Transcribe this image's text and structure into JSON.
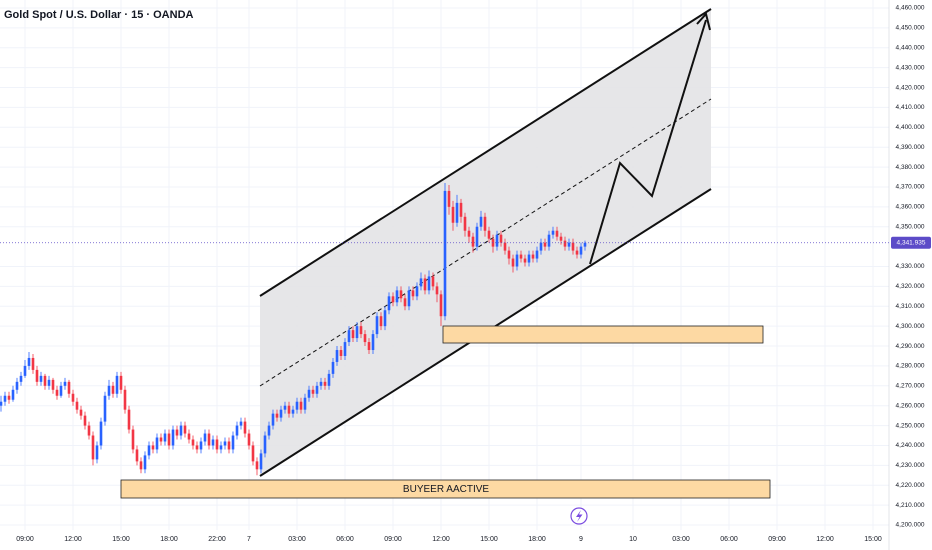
{
  "chart_data": {
    "type": "candlestick",
    "title": "Gold Spot / U.S. Dollar · 15 · OANDA",
    "up_color": "#2962ff",
    "down_color": "#f23645",
    "grid": true,
    "last_price": 4341.935,
    "last_price_label": "4,341.935",
    "last_price_color": "#5c4bc8",
    "annotation": "BUYEER AACTIVE",
    "xlim": [
      0,
      222
    ],
    "ylim": [
      4200,
      4460
    ],
    "xticks": [
      {
        "value": 6,
        "label": "09:00"
      },
      {
        "value": 18,
        "label": "12:00"
      },
      {
        "value": 30,
        "label": "15:00"
      },
      {
        "value": 42,
        "label": "18:00"
      },
      {
        "value": 54,
        "label": "22:00"
      },
      {
        "value": 62,
        "label": "7"
      },
      {
        "value": 74,
        "label": "03:00"
      },
      {
        "value": 86,
        "label": "06:00"
      },
      {
        "value": 98,
        "label": "09:00"
      },
      {
        "value": 110,
        "label": "12:00"
      },
      {
        "value": 122,
        "label": "15:00"
      },
      {
        "value": 134,
        "label": "18:00"
      },
      {
        "value": 145,
        "label": "9"
      },
      {
        "value": 158,
        "label": "10"
      },
      {
        "value": 170,
        "label": "03:00"
      },
      {
        "value": 182,
        "label": "06:00"
      },
      {
        "value": 194,
        "label": "09:00"
      },
      {
        "value": 206,
        "label": "12:00"
      },
      {
        "value": 218,
        "label": "15:00"
      }
    ],
    "yticks": [
      {
        "value": 4200,
        "label": "4,200.000"
      },
      {
        "value": 4210,
        "label": "4,210.000"
      },
      {
        "value": 4220,
        "label": "4,220.000"
      },
      {
        "value": 4230,
        "label": "4,230.000"
      },
      {
        "value": 4240,
        "label": "4,240.000"
      },
      {
        "value": 4250,
        "label": "4,250.000"
      },
      {
        "value": 4260,
        "label": "4,260.000"
      },
      {
        "value": 4270,
        "label": "4,270.000"
      },
      {
        "value": 4280,
        "label": "4,280.000"
      },
      {
        "value": 4290,
        "label": "4,290.000"
      },
      {
        "value": 4300,
        "label": "4,300.000"
      },
      {
        "value": 4310,
        "label": "4,310.000"
      },
      {
        "value": 4320,
        "label": "4,320.000"
      },
      {
        "value": 4330,
        "label": "4,330.000"
      },
      {
        "value": 4350,
        "label": "4,350.000"
      },
      {
        "value": 4360,
        "label": "4,360.000"
      },
      {
        "value": 4370,
        "label": "4,370.000"
      },
      {
        "value": 4380,
        "label": "4,380.000"
      },
      {
        "value": 4390,
        "label": "4,390.000"
      },
      {
        "value": 4400,
        "label": "4,400.000"
      },
      {
        "value": 4410,
        "label": "4,410.000"
      },
      {
        "value": 4420,
        "label": "4,420.000"
      },
      {
        "value": 4430,
        "label": "4,430.000"
      },
      {
        "value": 4440,
        "label": "4,440.000"
      },
      {
        "value": 4450,
        "label": "4,450.000"
      },
      {
        "value": 4460,
        "label": "4,460.000"
      }
    ],
    "ohlc": [
      [
        4260,
        4265,
        4257,
        4262
      ],
      [
        4262,
        4267,
        4260,
        4265
      ],
      [
        4265,
        4267,
        4261,
        4263
      ],
      [
        4263,
        4270,
        4262,
        4268
      ],
      [
        4268,
        4274,
        4266,
        4272
      ],
      [
        4272,
        4277,
        4270,
        4275
      ],
      [
        4275,
        4283,
        4274,
        4280
      ],
      [
        4280,
        4287,
        4278,
        4284
      ],
      [
        4284,
        4286,
        4276,
        4278
      ],
      [
        4278,
        4280,
        4270,
        4272
      ],
      [
        4272,
        4277,
        4270,
        4275
      ],
      [
        4275,
        4276,
        4268,
        4270
      ],
      [
        4270,
        4275,
        4268,
        4273
      ],
      [
        4273,
        4274,
        4266,
        4268
      ],
      [
        4268,
        4270,
        4263,
        4265
      ],
      [
        4265,
        4272,
        4264,
        4270
      ],
      [
        4270,
        4274,
        4268,
        4272
      ],
      [
        4272,
        4273,
        4264,
        4266
      ],
      [
        4266,
        4268,
        4260,
        4262
      ],
      [
        4262,
        4264,
        4256,
        4258
      ],
      [
        4258,
        4260,
        4253,
        4255
      ],
      [
        4255,
        4257,
        4248,
        4250
      ],
      [
        4250,
        4252,
        4243,
        4245
      ],
      [
        4245,
        4247,
        4230,
        4233
      ],
      [
        4233,
        4242,
        4231,
        4240
      ],
      [
        4240,
        4254,
        4238,
        4252
      ],
      [
        4252,
        4267,
        4250,
        4265
      ],
      [
        4265,
        4273,
        4263,
        4270
      ],
      [
        4270,
        4272,
        4264,
        4266
      ],
      [
        4266,
        4277,
        4264,
        4275
      ],
      [
        4275,
        4277,
        4266,
        4268
      ],
      [
        4268,
        4270,
        4256,
        4258
      ],
      [
        4258,
        4260,
        4246,
        4248
      ],
      [
        4248,
        4250,
        4236,
        4238
      ],
      [
        4238,
        4240,
        4230,
        4232
      ],
      [
        4232,
        4234,
        4226,
        4228
      ],
      [
        4228,
        4237,
        4226,
        4235
      ],
      [
        4235,
        4242,
        4233,
        4240
      ],
      [
        4240,
        4242,
        4236,
        4238
      ],
      [
        4238,
        4246,
        4236,
        4244
      ],
      [
        4244,
        4246,
        4240,
        4242
      ],
      [
        4242,
        4248,
        4240,
        4246
      ],
      [
        4246,
        4248,
        4238,
        4240
      ],
      [
        4240,
        4250,
        4238,
        4248
      ],
      [
        4248,
        4250,
        4243,
        4245
      ],
      [
        4245,
        4252,
        4243,
        4250
      ],
      [
        4250,
        4252,
        4244,
        4246
      ],
      [
        4246,
        4248,
        4241,
        4243
      ],
      [
        4243,
        4245,
        4238,
        4240
      ],
      [
        4240,
        4242,
        4236,
        4238
      ],
      [
        4238,
        4244,
        4236,
        4242
      ],
      [
        4242,
        4248,
        4240,
        4246
      ],
      [
        4246,
        4248,
        4238,
        4240
      ],
      [
        4240,
        4245,
        4238,
        4243
      ],
      [
        4243,
        4245,
        4236,
        4238
      ],
      [
        4238,
        4242,
        4236,
        4240
      ],
      [
        4240,
        4244,
        4238,
        4242
      ],
      [
        4242,
        4244,
        4236,
        4238
      ],
      [
        4238,
        4247,
        4236,
        4245
      ],
      [
        4245,
        4252,
        4243,
        4250
      ],
      [
        4250,
        4254,
        4248,
        4252
      ],
      [
        4252,
        4254,
        4244,
        4246
      ],
      [
        4246,
        4248,
        4238,
        4240
      ],
      [
        4240,
        4242,
        4230,
        4232
      ],
      [
        4232,
        4234,
        4225,
        4228
      ],
      [
        4228,
        4238,
        4226,
        4236
      ],
      [
        4236,
        4247,
        4234,
        4245
      ],
      [
        4245,
        4252,
        4243,
        4250
      ],
      [
        4250,
        4258,
        4248,
        4256
      ],
      [
        4256,
        4258,
        4252,
        4254
      ],
      [
        4254,
        4260,
        4252,
        4258
      ],
      [
        4258,
        4262,
        4256,
        4260
      ],
      [
        4260,
        4262,
        4254,
        4256
      ],
      [
        4256,
        4260,
        4254,
        4258
      ],
      [
        4258,
        4264,
        4256,
        4262
      ],
      [
        4262,
        4264,
        4256,
        4258
      ],
      [
        4258,
        4266,
        4256,
        4264
      ],
      [
        4264,
        4270,
        4262,
        4268
      ],
      [
        4268,
        4270,
        4264,
        4266
      ],
      [
        4266,
        4272,
        4264,
        4270
      ],
      [
        4270,
        4274,
        4268,
        4272
      ],
      [
        4272,
        4274,
        4268,
        4270
      ],
      [
        4270,
        4278,
        4268,
        4276
      ],
      [
        4276,
        4284,
        4274,
        4282
      ],
      [
        4282,
        4290,
        4280,
        4288
      ],
      [
        4288,
        4290,
        4283,
        4285
      ],
      [
        4285,
        4294,
        4283,
        4292
      ],
      [
        4292,
        4300,
        4290,
        4298
      ],
      [
        4298,
        4300,
        4292,
        4294
      ],
      [
        4294,
        4302,
        4292,
        4300
      ],
      [
        4300,
        4302,
        4294,
        4296
      ],
      [
        4296,
        4298,
        4290,
        4292
      ],
      [
        4292,
        4294,
        4286,
        4288
      ],
      [
        4288,
        4298,
        4286,
        4296
      ],
      [
        4296,
        4307,
        4294,
        4305
      ],
      [
        4305,
        4307,
        4298,
        4300
      ],
      [
        4300,
        4310,
        4298,
        4308
      ],
      [
        4308,
        4317,
        4306,
        4315
      ],
      [
        4315,
        4317,
        4310,
        4312
      ],
      [
        4312,
        4320,
        4310,
        4318
      ],
      [
        4318,
        4320,
        4312,
        4314
      ],
      [
        4314,
        4316,
        4308,
        4310
      ],
      [
        4310,
        4320,
        4308,
        4318
      ],
      [
        4318,
        4320,
        4313,
        4315
      ],
      [
        4315,
        4322,
        4313,
        4320
      ],
      [
        4320,
        4327,
        4318,
        4324
      ],
      [
        4324,
        4326,
        4316,
        4318
      ],
      [
        4318,
        4328,
        4316,
        4325
      ],
      [
        4325,
        4327,
        4318,
        4320
      ],
      [
        4320,
        4322,
        4312,
        4316
      ],
      [
        4316,
        4318,
        4300,
        4305
      ],
      [
        4305,
        4372,
        4303,
        4368
      ],
      [
        4368,
        4371,
        4356,
        4360
      ],
      [
        4360,
        4363,
        4348,
        4352
      ],
      [
        4352,
        4366,
        4350,
        4362
      ],
      [
        4362,
        4364,
        4352,
        4355
      ],
      [
        4355,
        4357,
        4345,
        4348
      ],
      [
        4348,
        4350,
        4342,
        4345
      ],
      [
        4345,
        4347,
        4337,
        4340
      ],
      [
        4340,
        4352,
        4338,
        4350
      ],
      [
        4350,
        4358,
        4348,
        4355
      ],
      [
        4355,
        4357,
        4345,
        4348
      ],
      [
        4348,
        4350,
        4342,
        4344
      ],
      [
        4344,
        4346,
        4337,
        4340
      ],
      [
        4340,
        4348,
        4338,
        4346
      ],
      [
        4346,
        4348,
        4340,
        4342
      ],
      [
        4342,
        4344,
        4336,
        4338
      ],
      [
        4338,
        4340,
        4331,
        4334
      ],
      [
        4334,
        4336,
        4327,
        4330
      ],
      [
        4330,
        4338,
        4328,
        4336
      ],
      [
        4336,
        4338,
        4332,
        4334
      ],
      [
        4334,
        4336,
        4330,
        4332
      ],
      [
        4332,
        4338,
        4330,
        4336
      ],
      [
        4336,
        4338,
        4332,
        4334
      ],
      [
        4334,
        4340,
        4332,
        4338
      ],
      [
        4338,
        4344,
        4336,
        4342
      ],
      [
        4342,
        4344,
        4338,
        4340
      ],
      [
        4340,
        4348,
        4338,
        4346
      ],
      [
        4346,
        4350,
        4344,
        4348
      ],
      [
        4348,
        4350,
        4343,
        4345
      ],
      [
        4345,
        4347,
        4341,
        4343
      ],
      [
        4343,
        4345,
        4338,
        4340
      ],
      [
        4340,
        4344,
        4338,
        4342
      ],
      [
        4342,
        4344,
        4336,
        4338
      ],
      [
        4338,
        4340,
        4334,
        4336
      ],
      [
        4336,
        4342,
        4334,
        4340
      ],
      [
        4340,
        4343,
        4338,
        4341.935
      ]
    ]
  }
}
